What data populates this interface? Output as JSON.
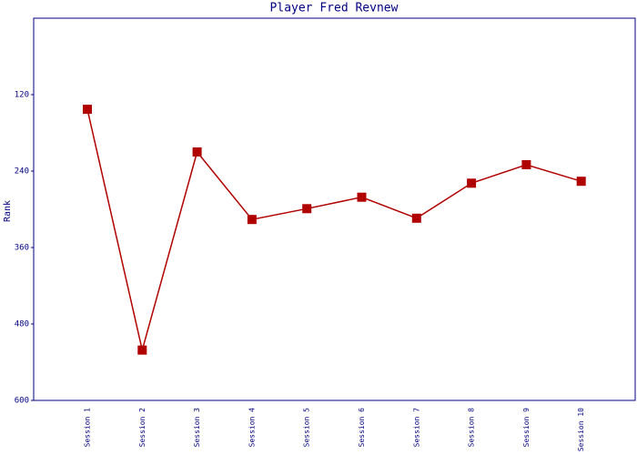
{
  "chart_data": {
    "type": "line",
    "title": "Player Fred Revnew",
    "y_label": "Rank",
    "categories": [
      "Session 1",
      "Session 2",
      "Session 3",
      "Session 4",
      "Session 5",
      "Session 6",
      "Session 7",
      "Session 8",
      "Session 9",
      "Session 10"
    ],
    "series": [
      {
        "name": "Rank",
        "color": "#b00000",
        "values": [
          143,
          521,
          210,
          316,
          299,
          281,
          314,
          259,
          230,
          256
        ]
      }
    ],
    "ylim": [
      0,
      600
    ],
    "yticks": [
      120,
      240,
      360,
      480,
      600
    ],
    "y_inverted": true,
    "grid": false
  }
}
